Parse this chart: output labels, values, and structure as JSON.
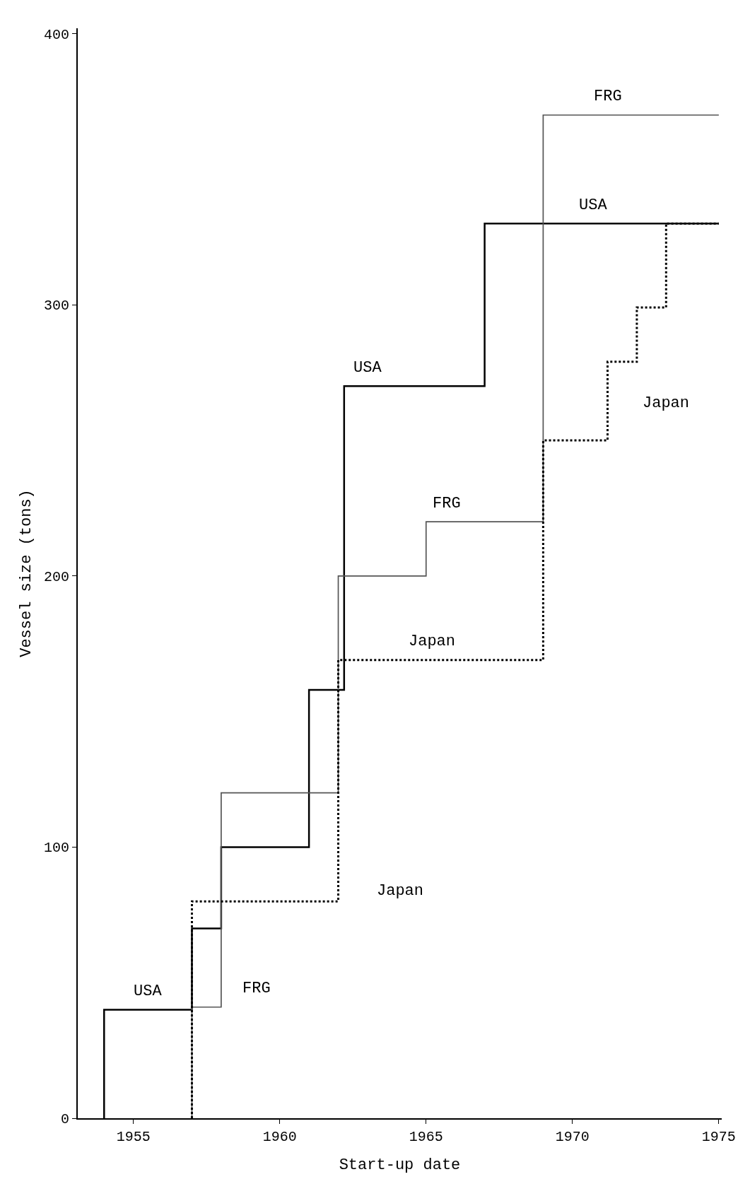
{
  "chart_data": {
    "type": "step",
    "xlabel": "Start-up date",
    "ylabel": "Vessel size (tons)",
    "xlim": [
      1953.1,
      1975.1
    ],
    "ylim": [
      0,
      402
    ],
    "xticks": [
      1955,
      1960,
      1965,
      1970,
      1975
    ],
    "yticks": [
      0,
      100,
      200,
      300,
      400
    ],
    "legend": false,
    "series": [
      {
        "name": "USA",
        "color": "#000000",
        "line_style": "solid",
        "x": [
          1954,
          1954,
          1957,
          1958,
          1961,
          1962.2,
          1967,
          1975
        ],
        "values": [
          0,
          40,
          70,
          100,
          158,
          270,
          330,
          330
        ]
      },
      {
        "name": "FRG",
        "color": "#555555",
        "line_style": "solid",
        "x": [
          1957,
          1957,
          1958,
          1962,
          1965,
          1969,
          1975
        ],
        "values": [
          0,
          41,
          120,
          200,
          220,
          370,
          370
        ]
      },
      {
        "name": "Japan",
        "color": "#000000",
        "line_style": "dotted",
        "x": [
          1957,
          1957,
          1962,
          1969,
          1971.2,
          1972.2,
          1973.2,
          1975
        ],
        "values": [
          0,
          80,
          169,
          250,
          279,
          299,
          330,
          330
        ]
      }
    ]
  }
}
